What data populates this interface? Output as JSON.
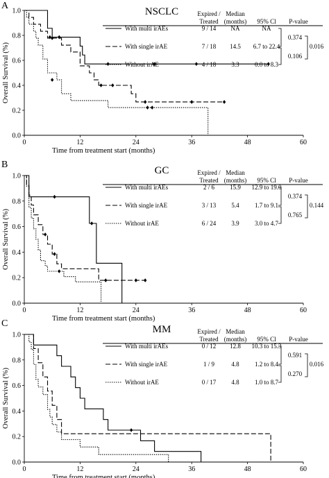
{
  "chart_data": [
    {
      "type": "line",
      "panel_letter": "A",
      "title": "NSCLC",
      "xlabel": "Time from treatment start (months)",
      "ylabel": "Overall Survival (%)",
      "xlim": [
        0,
        60
      ],
      "ylim": [
        0,
        1.0
      ],
      "x_ticks": [
        0,
        12,
        24,
        36,
        48,
        60
      ],
      "y_ticks": [
        0.0,
        0.2,
        0.4,
        0.6,
        0.8,
        1.0
      ],
      "grid": false,
      "series": [
        {
          "name": "With multi irAEs",
          "style": "solid",
          "steps": [
            [
              0,
              1.0
            ],
            [
              5,
              0.857
            ],
            [
              6,
              0.786
            ],
            [
              11.5,
              0.786
            ],
            [
              12,
              0.714
            ],
            [
              12.5,
              0.643
            ],
            [
              13,
              0.571
            ],
            [
              37,
              0.571
            ],
            [
              52.5,
              0.571
            ]
          ],
          "censored": [
            [
              5.5,
              0.786
            ],
            [
              7.5,
              0.786
            ],
            [
              18,
              0.571
            ],
            [
              28,
              0.571
            ],
            [
              37,
              0.571
            ],
            [
              52.5,
              0.571
            ]
          ]
        },
        {
          "name": "With single irAE",
          "style": "dashed",
          "steps": [
            [
              0,
              1.0
            ],
            [
              1,
              0.944
            ],
            [
              2,
              0.889
            ],
            [
              3.5,
              0.833
            ],
            [
              5,
              0.778
            ],
            [
              8,
              0.722
            ],
            [
              10,
              0.667
            ],
            [
              12,
              0.556
            ],
            [
              14,
              0.5
            ],
            [
              15,
              0.444
            ],
            [
              16,
              0.4
            ],
            [
              22,
              0.4
            ],
            [
              23,
              0.333
            ],
            [
              24,
              0.267
            ],
            [
              43,
              0.267
            ]
          ],
          "censored": [
            [
              6,
              0.778
            ],
            [
              16.5,
              0.4
            ],
            [
              19,
              0.4
            ],
            [
              26,
              0.267
            ],
            [
              36,
              0.267
            ],
            [
              43,
              0.267
            ]
          ]
        },
        {
          "name": "Without irAE",
          "style": "dotted",
          "steps": [
            [
              0,
              1.0
            ],
            [
              0.5,
              0.944
            ],
            [
              1,
              0.889
            ],
            [
              2,
              0.833
            ],
            [
              2.5,
              0.778
            ],
            [
              3,
              0.722
            ],
            [
              4,
              0.611
            ],
            [
              5,
              0.5
            ],
            [
              7,
              0.444
            ],
            [
              8,
              0.333
            ],
            [
              10,
              0.278
            ],
            [
              18,
              0.222
            ],
            [
              39.5,
              0.222
            ],
            [
              39.5,
              0.0
            ],
            [
              40.5,
              0.0
            ]
          ],
          "censored": [
            [
              6,
              0.444
            ],
            [
              26.5,
              0.222
            ],
            [
              27.5,
              0.222
            ]
          ]
        }
      ],
      "stats_table": {
        "headers": [
          "Expired / Treated",
          "Median (months)",
          "95% Cl",
          "P-value"
        ],
        "rows": [
          {
            "label": "With multi irAEs",
            "expired": "9 / 14",
            "median": "NA",
            "ci": "NA"
          },
          {
            "label": "With single irAE",
            "expired": "7 / 18",
            "median": "14.5",
            "ci": "6.7 to 22.4"
          },
          {
            "label": "Without irAE",
            "expired": "4 / 18",
            "median": "3.3",
            "ci": "0.0 to 8.3"
          }
        ],
        "pairwise_p": [
          "0.374",
          "0.106"
        ],
        "overall_p": "0.016"
      }
    },
    {
      "type": "line",
      "panel_letter": "B",
      "title": "GC",
      "xlabel": "Time from treatment start (months)",
      "ylabel": "Overall Survival (%)",
      "xlim": [
        0,
        60
      ],
      "ylim": [
        0,
        1.0
      ],
      "x_ticks": [
        0,
        12,
        24,
        36,
        48,
        60
      ],
      "y_ticks": [
        0.0,
        0.2,
        0.4,
        0.6,
        0.8,
        1.0
      ],
      "grid": false,
      "series": [
        {
          "name": "With multi irAEs",
          "style": "solid",
          "steps": [
            [
              0,
              1.0
            ],
            [
              1,
              0.833
            ],
            [
              14,
              0.833
            ],
            [
              14,
              0.625
            ],
            [
              15.5,
              0.625
            ],
            [
              15.5,
              0.313
            ],
            [
              21,
              0.313
            ],
            [
              21,
              0.0
            ],
            [
              22,
              0.0
            ]
          ],
          "censored": [
            [
              6.5,
              0.833
            ],
            [
              14.5,
              0.625
            ]
          ]
        },
        {
          "name": "With single irAE",
          "style": "dashed",
          "steps": [
            [
              0,
              1.0
            ],
            [
              0.5,
              0.923
            ],
            [
              1,
              0.846
            ],
            [
              1.5,
              0.769
            ],
            [
              2,
              0.692
            ],
            [
              3,
              0.615
            ],
            [
              4,
              0.538
            ],
            [
              5,
              0.462
            ],
            [
              6,
              0.385
            ],
            [
              7,
              0.308
            ],
            [
              8,
              0.269
            ],
            [
              15,
              0.269
            ],
            [
              16,
              0.179
            ],
            [
              26,
              0.179
            ]
          ],
          "censored": [
            [
              4.5,
              0.538
            ],
            [
              6.5,
              0.385
            ],
            [
              17.5,
              0.179
            ],
            [
              24,
              0.179
            ],
            [
              26,
              0.179
            ]
          ]
        },
        {
          "name": "Without irAE",
          "style": "dotted",
          "steps": [
            [
              0,
              1.0
            ],
            [
              0.5,
              0.917
            ],
            [
              1,
              0.75
            ],
            [
              1.5,
              0.667
            ],
            [
              2,
              0.583
            ],
            [
              2.5,
              0.5
            ],
            [
              3,
              0.417
            ],
            [
              3.5,
              0.333
            ],
            [
              4.5,
              0.292
            ],
            [
              5,
              0.25
            ],
            [
              8,
              0.25
            ],
            [
              8.5,
              0.208
            ],
            [
              10,
              0.208
            ],
            [
              11,
              0.167
            ],
            [
              16,
              0.167
            ],
            [
              16.5,
              0.0
            ],
            [
              17,
              0.0
            ]
          ],
          "censored": [
            [
              7.5,
              0.25
            ]
          ]
        }
      ],
      "stats_table": {
        "headers": [
          "Expired / Treated",
          "Median (months)",
          "95% Cl",
          "P-value"
        ],
        "rows": [
          {
            "label": "With multi irAEs",
            "expired": "2 / 6",
            "median": "15.9",
            "ci": "12.9 to 19.0"
          },
          {
            "label": "With single irAE",
            "expired": "3 / 13",
            "median": "5.4",
            "ci": "1.7 to 9.1"
          },
          {
            "label": "Without irAE",
            "expired": "6 / 24",
            "median": "3.9",
            "ci": "3.0 to 4.7"
          }
        ],
        "pairwise_p": [
          "0.374",
          "0.765"
        ],
        "overall_p": "0.144"
      }
    },
    {
      "type": "line",
      "panel_letter": "C",
      "title": "MM",
      "xlabel": "Time from treatment start (months)",
      "ylabel": "Overall Survival (%)",
      "xlim": [
        0,
        60
      ],
      "ylim": [
        0,
        1.0
      ],
      "x_ticks": [
        0,
        12,
        24,
        36,
        48,
        60
      ],
      "y_ticks": [
        0.0,
        0.2,
        0.4,
        0.6,
        0.8,
        1.0
      ],
      "grid": false,
      "series": [
        {
          "name": "With multi irAEs",
          "style": "solid",
          "steps": [
            [
              0,
              1.0
            ],
            [
              2,
              0.917
            ],
            [
              7,
              0.833
            ],
            [
              8,
              0.75
            ],
            [
              10,
              0.667
            ],
            [
              11,
              0.583
            ],
            [
              12,
              0.5
            ],
            [
              13,
              0.417
            ],
            [
              17,
              0.333
            ],
            [
              18,
              0.25
            ],
            [
              24,
              0.25
            ],
            [
              25,
              0.167
            ],
            [
              28,
              0.083
            ],
            [
              38,
              0.083
            ],
            [
              38,
              0.0
            ],
            [
              39,
              0.0
            ]
          ],
          "censored": [
            [
              23,
              0.25
            ]
          ]
        },
        {
          "name": "With single irAE",
          "style": "dashed",
          "steps": [
            [
              0,
              1.0
            ],
            [
              2,
              0.889
            ],
            [
              3,
              0.778
            ],
            [
              4,
              0.667
            ],
            [
              5,
              0.556
            ],
            [
              6,
              0.444
            ],
            [
              7,
              0.333
            ],
            [
              8,
              0.222
            ],
            [
              53,
              0.222
            ],
            [
              53,
              0.0
            ],
            [
              54,
              0.0
            ]
          ],
          "censored": []
        },
        {
          "name": "Without irAE",
          "style": "dotted",
          "steps": [
            [
              0,
              1.0
            ],
            [
              1,
              0.941
            ],
            [
              1.5,
              0.882
            ],
            [
              2,
              0.765
            ],
            [
              2.5,
              0.647
            ],
            [
              3,
              0.588
            ],
            [
              4,
              0.529
            ],
            [
              5,
              0.412
            ],
            [
              5.5,
              0.353
            ],
            [
              6,
              0.294
            ],
            [
              7,
              0.235
            ],
            [
              8,
              0.176
            ],
            [
              11,
              0.176
            ],
            [
              12,
              0.118
            ],
            [
              15,
              0.118
            ],
            [
              16,
              0.059
            ],
            [
              31,
              0.059
            ],
            [
              31,
              0.0
            ],
            [
              32,
              0.0
            ]
          ],
          "censored": []
        }
      ],
      "stats_table": {
        "headers": [
          "Expired / Treated",
          "Median (months)",
          "95% Cl",
          "P-value"
        ],
        "rows": [
          {
            "label": "With multi irAEs",
            "expired": "0 / 12",
            "median": "12.8",
            "ci": "10.3 to 15.3"
          },
          {
            "label": "With single irAE",
            "expired": "1 / 9",
            "median": "4.8",
            "ci": "1.2 to 8.4"
          },
          {
            "label": "Without irAE",
            "expired": "0 / 17",
            "median": "4.8",
            "ci": "1.0 to 8.7"
          }
        ],
        "pairwise_p": [
          "0.591",
          "0.270"
        ],
        "overall_p": "0.016"
      }
    }
  ]
}
